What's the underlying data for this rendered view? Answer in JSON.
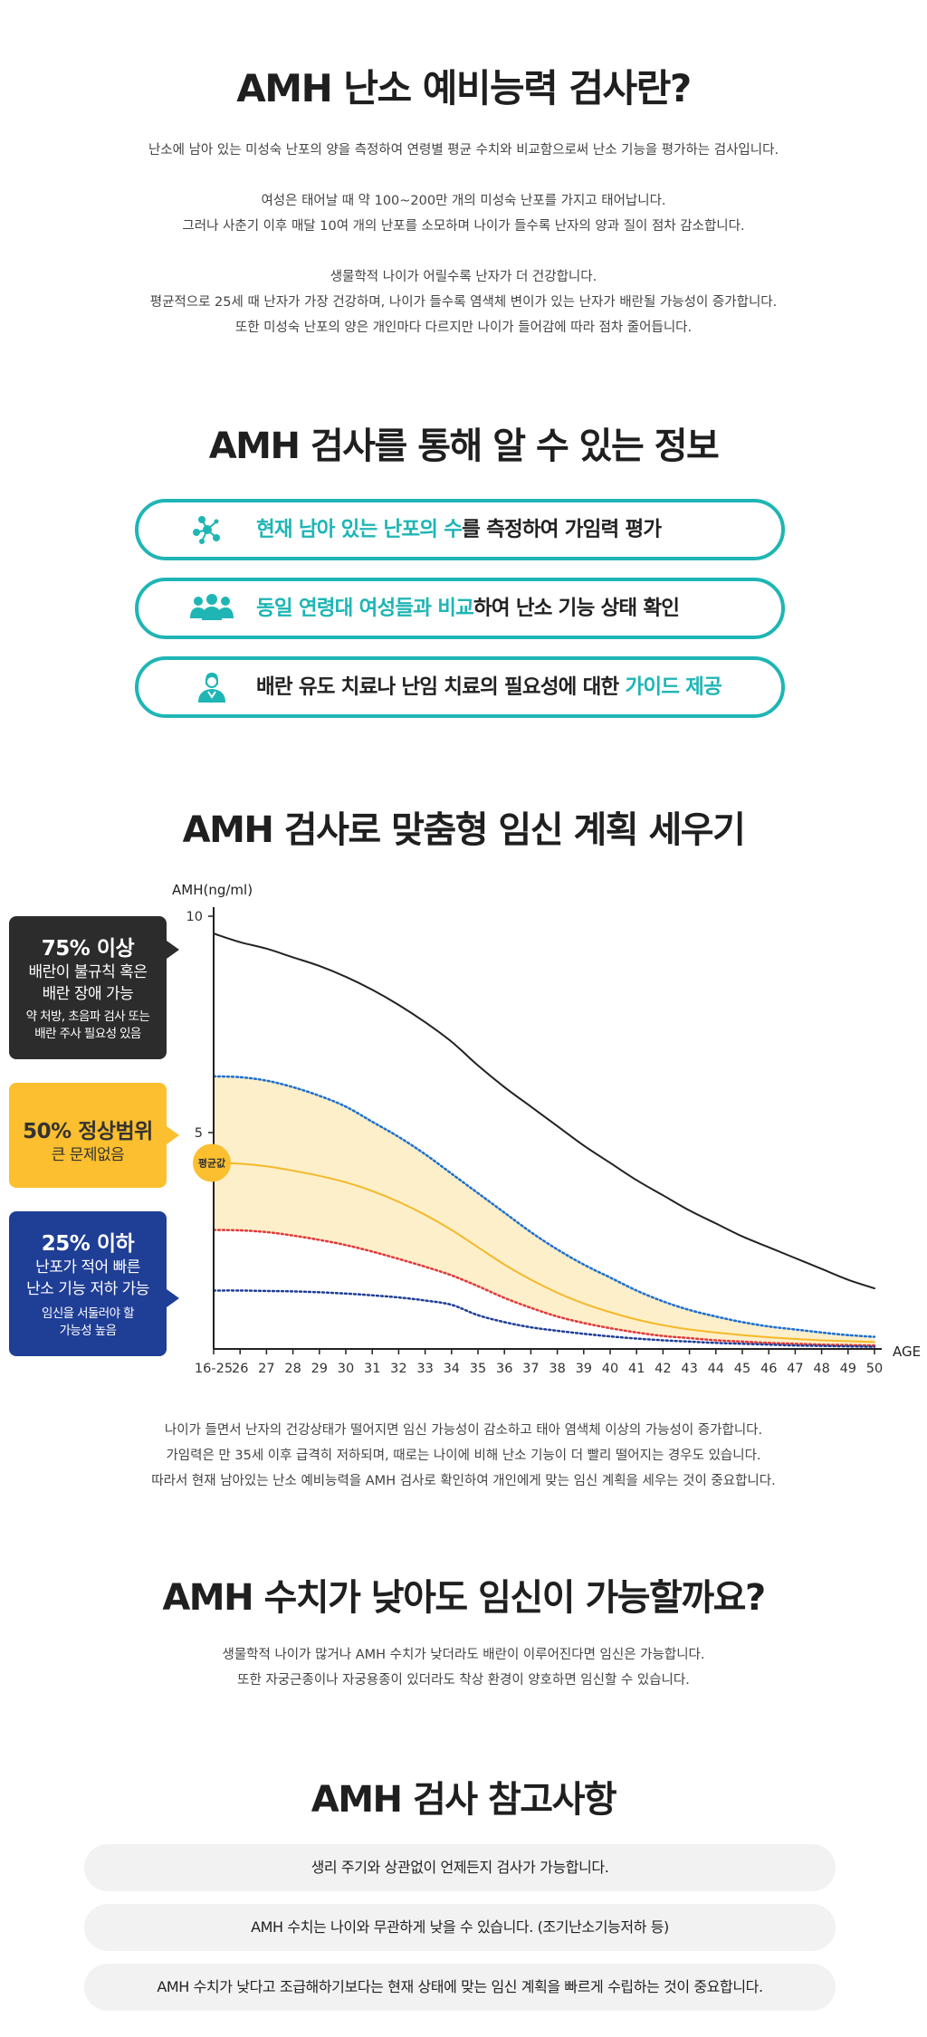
{
  "section1": {
    "title": "AMH 난소 예비능력 검사란?",
    "lines": [
      "난소에 남아 있는 미성숙 난포의 양을 측정하여 연령별 평균 수치와 비교함으로써 난소 기능을 평가하는 검사입니다.",
      "",
      "여성은 태어날 때 약 100~200만 개의 미성숙 난포를 가지고 태어납니다.",
      "그러나 사춘기 이후 매달 10여 개의 난포를 소모하며 나이가 들수록 난자의 양과 질이 점차 감소합니다.",
      "",
      "생물학적 나이가 어릴수록 난자가 더 건강합니다.",
      "평균적으로 25세 때 난자가 가장 건강하며, 나이가 들수록 염색체 변이가 있는 난자가 배란될 가능성이 증가합니다.",
      "또한 미성숙 난포의 양은 개인마다 다르지만 나이가 들어감에 따라 점차 줄어듭니다."
    ]
  },
  "section2": {
    "title": "AMH 검사를 통해 알 수 있는 정보",
    "items": [
      {
        "icon": "molecule-icon",
        "highlight": "현재 남아 있는 난포의 수",
        "text": "를 측정하여 가임력 평가",
        "highlight_position": "start"
      },
      {
        "icon": "people-group-icon",
        "highlight": "동일 연령대 여성들과 비교",
        "text": "하여 난소 기능 상태 확인",
        "highlight_position": "start"
      },
      {
        "icon": "doctor-icon",
        "highlight": "가이드 제공",
        "text": "배란 유도 치료나 난임 치료의 필요성에 대한 ",
        "highlight_position": "end"
      }
    ],
    "accent": "#1fb5b5"
  },
  "section3": {
    "title": "AMH 검사로 맞춤형 임신 계획 세우기",
    "legend_boxes": [
      {
        "big": "75% 이상",
        "mid1": "배란이 불규칙 혹은",
        "mid2": "배란 장애 가능",
        "small1": "약 처방, 초음파 검사 또는",
        "small2": "배란 주사 필요성 있음",
        "color": "#2c2c2c"
      },
      {
        "big": "50% 정상범위",
        "mid1": "큰 문제없음",
        "color": "#fbbf2f"
      },
      {
        "big": "25% 이하",
        "mid1": "난포가 적어 빠른",
        "mid2": "난소 기능 저하 가능",
        "small1": "임신을 서둘러야 할",
        "small2": "가능성 높음",
        "color": "#1f3e96"
      }
    ],
    "lines": [
      "나이가 들면서 난자의 건강상태가 떨어지면 임신 가능성이 감소하고 태아 염색체 이상의 가능성이 증가합니다.",
      "가임력은 만 35세 이후 급격히 저하되며, 때로는 나이에 비해 난소 기능이 더 빨리 떨어지는 경우도 있습니다.",
      "따라서 현재 남아있는 난소 예비능력을 AMH 검사로 확인하여 개인에게 맞는 임신 계획을 세우는 것이 중요합니다."
    ]
  },
  "chart_data": {
    "type": "line",
    "ylabel": "AMH(ng/ml)",
    "xlabel": "AGE",
    "ylim": [
      0,
      10
    ],
    "yticks": [
      10,
      5
    ],
    "categories": [
      "16-25",
      "26",
      "27",
      "28",
      "29",
      "30",
      "31",
      "32",
      "33",
      "34",
      "35",
      "36",
      "37",
      "38",
      "39",
      "40",
      "41",
      "42",
      "43",
      "44",
      "45",
      "46",
      "47",
      "48",
      "49",
      "50"
    ],
    "mean_badge": "평균값",
    "series": [
      {
        "color": "#222222",
        "style": "solid",
        "values": [
          9.6,
          9.4,
          9.25,
          9.05,
          8.85,
          8.6,
          8.3,
          7.95,
          7.55,
          7.1,
          6.55,
          6.05,
          5.6,
          5.15,
          4.7,
          4.3,
          3.9,
          3.55,
          3.2,
          2.9,
          2.6,
          2.35,
          2.1,
          1.85,
          1.6,
          1.4
        ]
      },
      {
        "color": "#1e6fd0",
        "style": "dotted",
        "values": [
          6.3,
          6.28,
          6.2,
          6.05,
          5.85,
          5.6,
          5.25,
          4.9,
          4.5,
          4.05,
          3.6,
          3.15,
          2.7,
          2.3,
          1.95,
          1.65,
          1.35,
          1.1,
          0.9,
          0.75,
          0.62,
          0.52,
          0.45,
          0.38,
          0.32,
          0.28
        ]
      },
      {
        "color": "#f5b82a",
        "style": "solid",
        "values": [
          4.3,
          4.28,
          4.22,
          4.12,
          4.0,
          3.85,
          3.65,
          3.4,
          3.1,
          2.75,
          2.35,
          1.95,
          1.6,
          1.3,
          1.05,
          0.85,
          0.68,
          0.55,
          0.45,
          0.38,
          0.32,
          0.27,
          0.23,
          0.2,
          0.18,
          0.16
        ]
      },
      {
        "color": "#e03a3a",
        "style": "dotted",
        "values": [
          2.75,
          2.74,
          2.7,
          2.62,
          2.52,
          2.4,
          2.25,
          2.08,
          1.9,
          1.7,
          1.45,
          1.18,
          0.95,
          0.75,
          0.6,
          0.48,
          0.38,
          0.3,
          0.25,
          0.2,
          0.17,
          0.14,
          0.12,
          0.1,
          0.09,
          0.08
        ]
      },
      {
        "color": "#1f3e96",
        "style": "dotted",
        "values": [
          1.35,
          1.35,
          1.34,
          1.33,
          1.31,
          1.28,
          1.24,
          1.19,
          1.12,
          1.02,
          0.78,
          0.62,
          0.5,
          0.42,
          0.35,
          0.29,
          0.24,
          0.2,
          0.17,
          0.14,
          0.12,
          0.1,
          0.08,
          0.07,
          0.06,
          0.05
        ]
      }
    ],
    "band": {
      "upper_series": 1,
      "lower_series": 3,
      "color": "#fdefc9"
    }
  },
  "section4": {
    "title": "AMH 수치가 낮아도 임신이 가능할까요?",
    "lines": [
      "생물학적 나이가 많거나 AMH 수치가 낮더라도 배란이 이루어진다면 임신은 가능합니다.",
      "또한 자궁근종이나 자궁용종이 있더라도 착상 환경이 양호하면 임신할 수 있습니다."
    ]
  },
  "section5": {
    "title": "AMH 검사 참고사항",
    "items": [
      "생리 주기와 상관없이 언제든지 검사가 가능합니다.",
      "AMH 수치는 나이와 무관하게 낮을 수 있습니다. (조기난소기능저하 등)",
      "AMH 수치가 낮다고 조급해하기보다는 현재 상태에 맞는 임신 계획을 빠르게 수립하는 것이 중요합니다."
    ]
  }
}
